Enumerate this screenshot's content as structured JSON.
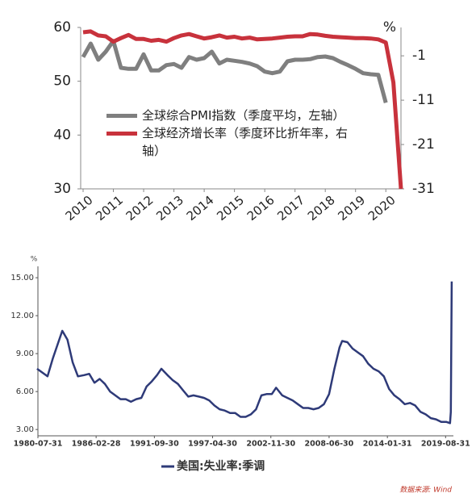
{
  "chart_data": [
    {
      "type": "line",
      "xlim": [
        2009.92,
        2020.5
      ],
      "xticks": [
        2010,
        2011,
        2012,
        2013,
        2014,
        2015,
        2016,
        2017,
        2018,
        2019,
        2020
      ],
      "ylim": [
        30,
        60
      ],
      "yticks": [
        30,
        40,
        50,
        60
      ],
      "y2label": "%",
      "y2lim": [
        -31,
        5.4
      ],
      "y2ticks": [
        -1,
        -11,
        -21,
        -31
      ],
      "x": [
        2010,
        2010.25,
        2010.5,
        2010.75,
        2011,
        2011.25,
        2011.5,
        2011.75,
        2012,
        2012.25,
        2012.5,
        2012.75,
        2013,
        2013.25,
        2013.5,
        2013.75,
        2014,
        2014.25,
        2014.5,
        2014.75,
        2015,
        2015.25,
        2015.5,
        2015.75,
        2016,
        2016.25,
        2016.5,
        2016.75,
        2017,
        2017.25,
        2017.5,
        2017.75,
        2018,
        2018.25,
        2018.5,
        2018.75,
        2019,
        2019.25,
        2019.5,
        2019.75,
        2020,
        2020.25,
        2020.5
      ],
      "series": [
        {
          "name": "全球综合PMI指数（季度平均，左轴）",
          "color": "#7f7f7f",
          "values": [
            54.5,
            57,
            54,
            55.5,
            57.5,
            52.5,
            52.3,
            52.3,
            55,
            52,
            52,
            53,
            53.2,
            52.5,
            54.5,
            54,
            54.3,
            55.5,
            53.3,
            54,
            53.8,
            53.6,
            53.3,
            52.8,
            51.8,
            51.5,
            51.8,
            53.7,
            54,
            54,
            54.1,
            54.5,
            54.6,
            54.3,
            53.6,
            53,
            52.3,
            51.5,
            51.3,
            51.2,
            46,
            null,
            null
          ]
        },
        {
          "name": "全球经济增长率（季度环比折年率，右轴）",
          "color": "#c8323c",
          "axis": "y2",
          "values": [
            4.3,
            4.5,
            3.6,
            3.4,
            2.2,
            3.0,
            3.7,
            2.8,
            2.8,
            2.4,
            2.6,
            2.2,
            3.0,
            3.6,
            3.9,
            3.4,
            2.9,
            3.2,
            3.6,
            3.1,
            3.3,
            2.9,
            3.1,
            2.7,
            2.8,
            2.9,
            3.1,
            3.3,
            3.4,
            3.4,
            3.9,
            3.8,
            3.5,
            3.3,
            3.2,
            3.1,
            3.0,
            3.0,
            2.9,
            2.7,
            2.0,
            -7,
            -31
          ]
        }
      ]
    },
    {
      "type": "line",
      "ylabel": "%",
      "xlim": [
        "1980-07-31",
        "2020-05-31"
      ],
      "xticks": [
        "1980-07-31",
        "1986-02-28",
        "1991-09-30",
        "1997-04-30",
        "2002-11-30",
        "2008-06-30",
        "2014-01-31",
        "2019-08-31"
      ],
      "ylim": [
        2.5,
        15.9
      ],
      "yticks": [
        {
          "value": 3,
          "label": "3.00"
        },
        {
          "value": 6,
          "label": "6.00"
        },
        {
          "value": 9,
          "label": "9.00"
        },
        {
          "value": 12,
          "label": "12.00"
        },
        {
          "value": 15,
          "label": "15.00"
        }
      ],
      "x": [
        "1980-07",
        "1981-01",
        "1981-07",
        "1982-01",
        "1982-07",
        "1982-12",
        "1983-06",
        "1983-12",
        "1984-06",
        "1985-01",
        "1985-07",
        "1986-01",
        "1986-07",
        "1987-01",
        "1987-07",
        "1988-01",
        "1988-07",
        "1989-01",
        "1989-07",
        "1990-01",
        "1990-07",
        "1991-01",
        "1991-07",
        "1992-01",
        "1992-06",
        "1993-01",
        "1993-07",
        "1994-01",
        "1994-07",
        "1995-01",
        "1995-07",
        "1996-01",
        "1996-07",
        "1997-01",
        "1997-07",
        "1998-01",
        "1998-07",
        "1999-01",
        "1999-07",
        "2000-01",
        "2000-07",
        "2001-01",
        "2001-07",
        "2002-01",
        "2002-07",
        "2003-01",
        "2003-06",
        "2004-01",
        "2004-07",
        "2005-01",
        "2005-07",
        "2006-01",
        "2006-07",
        "2007-01",
        "2007-07",
        "2008-01",
        "2008-07",
        "2009-01",
        "2009-07",
        "2009-10",
        "2010-04",
        "2010-10",
        "2011-04",
        "2011-10",
        "2012-04",
        "2012-10",
        "2013-04",
        "2013-10",
        "2014-04",
        "2014-10",
        "2015-04",
        "2015-10",
        "2016-04",
        "2016-10",
        "2017-04",
        "2017-10",
        "2018-04",
        "2018-10",
        "2019-04",
        "2019-10",
        "2020-02",
        "2020-03",
        "2020-04"
      ],
      "series": [
        {
          "name": "美国:失业率:季调",
          "color": "#2e3a78",
          "values": [
            7.8,
            7.5,
            7.2,
            8.6,
            9.8,
            10.8,
            10.1,
            8.3,
            7.2,
            7.3,
            7.4,
            6.7,
            7.0,
            6.6,
            6.0,
            5.7,
            5.4,
            5.4,
            5.2,
            5.4,
            5.5,
            6.4,
            6.8,
            7.3,
            7.8,
            7.3,
            6.9,
            6.6,
            6.1,
            5.6,
            5.7,
            5.6,
            5.5,
            5.3,
            4.9,
            4.6,
            4.5,
            4.3,
            4.3,
            4.0,
            4.0,
            4.2,
            4.6,
            5.7,
            5.8,
            5.8,
            6.3,
            5.7,
            5.5,
            5.3,
            5.0,
            4.7,
            4.7,
            4.6,
            4.7,
            5.0,
            5.8,
            7.8,
            9.5,
            10.0,
            9.9,
            9.4,
            9.1,
            8.8,
            8.2,
            7.8,
            7.6,
            7.2,
            6.2,
            5.7,
            5.4,
            5.0,
            5.1,
            4.9,
            4.4,
            4.2,
            3.9,
            3.8,
            3.6,
            3.6,
            3.5,
            4.4,
            14.7
          ]
        }
      ],
      "source": "数据来源: Wind"
    }
  ]
}
